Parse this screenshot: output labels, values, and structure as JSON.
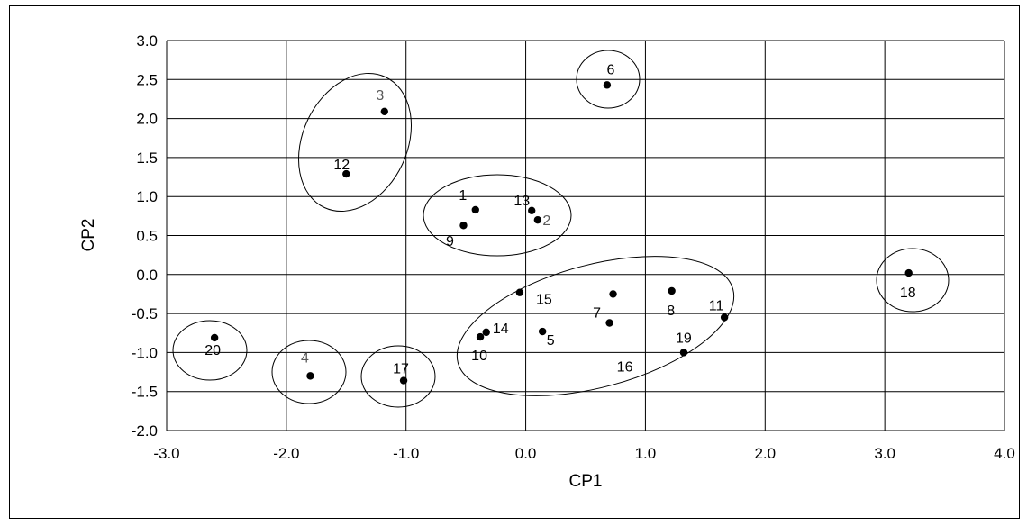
{
  "chart_data": {
    "type": "scatter",
    "xlabel": "CP1",
    "ylabel": "CP2",
    "xlim": [
      -3.0,
      4.0
    ],
    "ylim": [
      -2.0,
      3.0
    ],
    "x_ticks": [
      "-3.0",
      "-2.0",
      "-1.0",
      "0.0",
      "1.0",
      "2.0",
      "3.0",
      "4.0"
    ],
    "y_ticks": [
      "3.0",
      "2.5",
      "2.0",
      "1.5",
      "1.0",
      "0.5",
      "0.0",
      "-0.5",
      "-1.0",
      "-1.5",
      "-2.0"
    ],
    "x_tick_values": [
      -3,
      -2,
      -1,
      0,
      1,
      2,
      3,
      4
    ],
    "y_tick_values": [
      3.0,
      2.5,
      2.0,
      1.5,
      1.0,
      0.5,
      0.0,
      -0.5,
      -1.0,
      -1.5,
      -2.0
    ],
    "grid": true,
    "point_color": "#000000",
    "points": [
      {
        "label": "1",
        "x": -0.42,
        "y": 0.83
      },
      {
        "label": "2",
        "x": 0.1,
        "y": 0.7
      },
      {
        "label": "3",
        "x": -1.18,
        "y": 2.09
      },
      {
        "label": "4",
        "x": -1.8,
        "y": -1.3
      },
      {
        "label": "5",
        "x": 0.14,
        "y": -0.73
      },
      {
        "label": "6",
        "x": 0.68,
        "y": 2.43
      },
      {
        "label": "7",
        "x": 0.73,
        "y": -0.25
      },
      {
        "label": "8",
        "x": 1.22,
        "y": -0.21
      },
      {
        "label": "9",
        "x": -0.52,
        "y": 0.63
      },
      {
        "label": "10",
        "x": -0.38,
        "y": -0.8
      },
      {
        "label": "11",
        "x": 1.66,
        "y": -0.55
      },
      {
        "label": "12",
        "x": -1.5,
        "y": 1.29
      },
      {
        "label": "13",
        "x": 0.05,
        "y": 0.82
      },
      {
        "label": "14",
        "x": -0.33,
        "y": -0.74
      },
      {
        "label": "15",
        "x": -0.05,
        "y": -0.23
      },
      {
        "label": "16",
        "x": 0.7,
        "y": -0.62
      },
      {
        "label": "17",
        "x": -1.02,
        "y": -1.36
      },
      {
        "label": "18",
        "x": 3.2,
        "y": 0.02
      },
      {
        "label": "19",
        "x": 1.32,
        "y": -1.0
      },
      {
        "label": "20",
        "x": -2.6,
        "y": -0.81
      }
    ],
    "clusters": [
      {
        "members": [
          "3",
          "12"
        ]
      },
      {
        "members": [
          "6"
        ]
      },
      {
        "members": [
          "1",
          "2",
          "9",
          "13"
        ]
      },
      {
        "members": [
          "18"
        ]
      },
      {
        "members": [
          "5",
          "7",
          "8",
          "10",
          "11",
          "14",
          "15",
          "16",
          "19"
        ]
      },
      {
        "members": [
          "20"
        ]
      },
      {
        "members": [
          "4"
        ]
      },
      {
        "members": [
          "17"
        ]
      }
    ]
  }
}
